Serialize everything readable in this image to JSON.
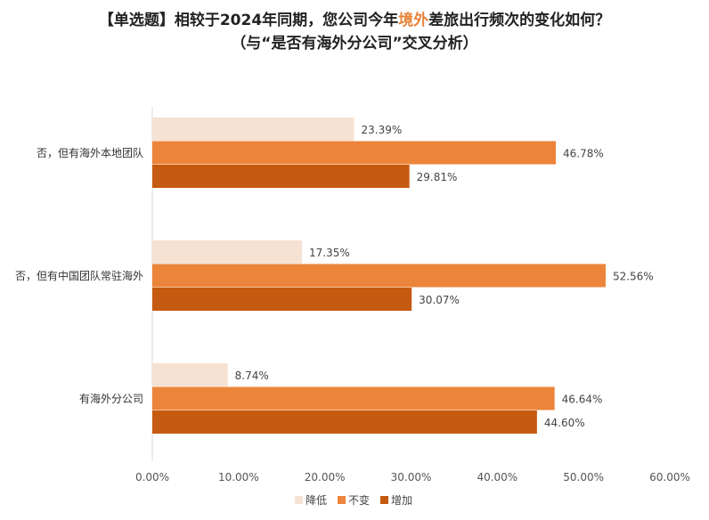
{
  "title": {
    "line1_prefix": "【单选题】相较于2024年同期，您公司今年",
    "line1_highlight": "境外",
    "line1_suffix": "差旅出行频次的变化如何？",
    "line2": "（与“是否有海外分公司”交叉分析）"
  },
  "colors": {
    "highlight": "#E8843A"
  },
  "chart_data": {
    "type": "bar",
    "orientation": "horizontal",
    "categories": [
      "否，但有海外本地团队",
      "否，但有中国团队常驻海外",
      "有海外分公司"
    ],
    "series": [
      {
        "name": "降低",
        "color": "#F6E2D3",
        "values": [
          23.39,
          17.35,
          8.74
        ],
        "labels": [
          "23.39%",
          "17.35%",
          "8.74%"
        ]
      },
      {
        "name": "不变",
        "color": "#EC843A",
        "values": [
          46.78,
          52.56,
          46.64
        ],
        "labels": [
          "46.78%",
          "52.56%",
          "46.64%"
        ]
      },
      {
        "name": "增加",
        "color": "#C55A11",
        "values": [
          29.81,
          30.07,
          44.6
        ],
        "labels": [
          "29.81%",
          "30.07%",
          "44.60%"
        ]
      }
    ],
    "xlim": [
      0,
      60
    ],
    "xticks": [
      0,
      10,
      20,
      30,
      40,
      50,
      60
    ],
    "xtick_labels": [
      "0.00%",
      "10.00%",
      "20.00%",
      "30.00%",
      "40.00%",
      "50.00%",
      "60.00%"
    ],
    "grid": false,
    "legend": "bottom"
  }
}
